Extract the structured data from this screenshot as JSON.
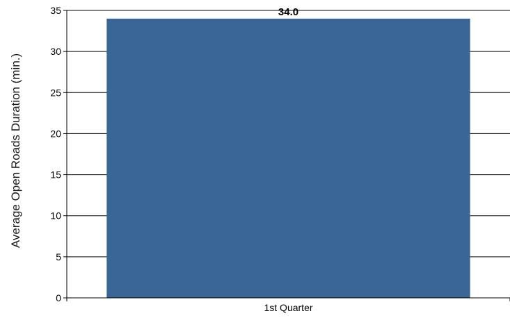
{
  "chart_data": {
    "type": "bar",
    "categories": [
      "1st Quarter"
    ],
    "values": [
      34.0
    ],
    "value_labels": [
      "34.0"
    ],
    "xlabel": "",
    "ylabel": "Average Open Roads Duration (min.)",
    "ylim": [
      0,
      35
    ],
    "yticks": [
      0,
      5,
      10,
      15,
      20,
      25,
      30,
      35
    ],
    "grid": true,
    "legend": "none",
    "colors": {
      "bar": "#3a6697",
      "grid": "#000000",
      "axis": "#000000"
    }
  }
}
